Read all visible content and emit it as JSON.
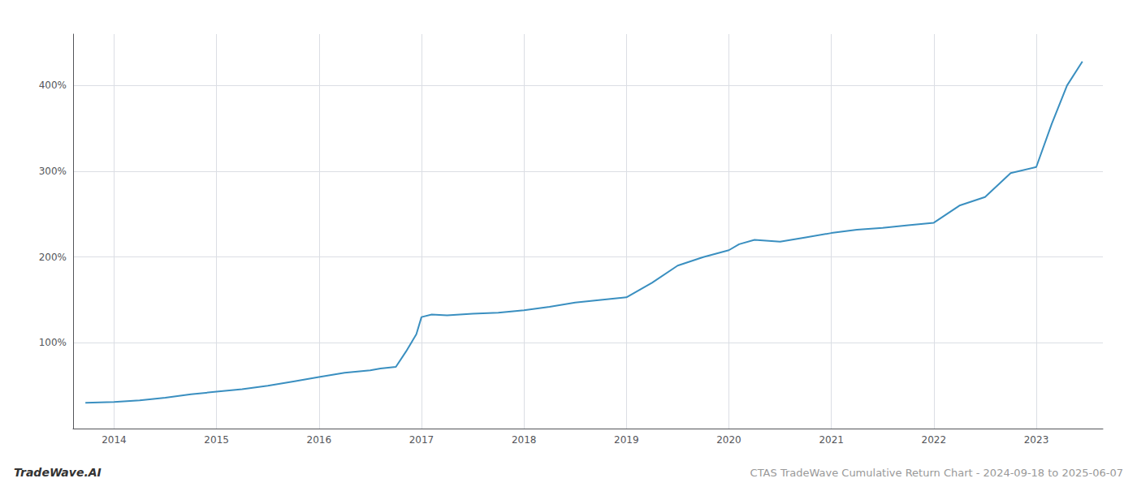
{
  "chart_data": {
    "type": "line",
    "title": "CTAS TradeWave Cumulative Return Chart - 2024-09-18 to 2025-06-07",
    "annotations": [
      "TradeWave.AI"
    ],
    "color": "#3a8fc0",
    "x": [
      2013.72,
      2014.0,
      2014.25,
      2014.5,
      2014.75,
      2015.0,
      2015.25,
      2015.5,
      2015.75,
      2016.0,
      2016.25,
      2016.5,
      2016.6,
      2016.75,
      2016.85,
      2016.95,
      2017.0,
      2017.1,
      2017.25,
      2017.5,
      2017.75,
      2018.0,
      2018.25,
      2018.5,
      2018.75,
      2019.0,
      2019.25,
      2019.5,
      2019.75,
      2020.0,
      2020.1,
      2020.25,
      2020.5,
      2020.75,
      2021.0,
      2021.25,
      2021.5,
      2021.75,
      2022.0,
      2022.25,
      2022.5,
      2022.75,
      2023.0,
      2023.15,
      2023.3,
      2023.45
    ],
    "values": [
      30,
      31,
      33,
      36,
      40,
      43,
      46,
      50,
      55,
      60,
      65,
      68,
      70,
      72,
      90,
      110,
      130,
      133,
      132,
      134,
      135,
      138,
      142,
      147,
      150,
      153,
      170,
      190,
      200,
      208,
      215,
      220,
      218,
      223,
      228,
      232,
      234,
      237,
      240,
      260,
      270,
      298,
      305,
      355,
      400,
      428
    ],
    "xlim": [
      2013.6,
      2023.65
    ],
    "ylim": [
      0,
      460
    ],
    "xticks": [
      2014,
      2015,
      2016,
      2017,
      2018,
      2019,
      2020,
      2021,
      2022,
      2023
    ],
    "yticks": [
      {
        "value": 100,
        "label": "100%"
      },
      {
        "value": 200,
        "label": "200%"
      },
      {
        "value": 300,
        "label": "300%"
      },
      {
        "value": 400,
        "label": "400%"
      }
    ],
    "grid": true
  }
}
